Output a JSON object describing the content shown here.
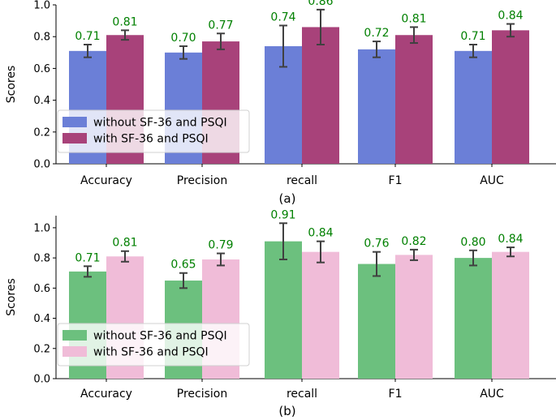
{
  "chart_data": [
    {
      "type": "bar",
      "panel": "(a)",
      "caption": "(a)",
      "categories": [
        "Accuracy",
        "Precision",
        "recall",
        "F1",
        "AUC"
      ],
      "ylabel": "Scores",
      "ylim": [
        0,
        1.0
      ],
      "yticks": [
        "0.0",
        "0.2",
        "0.4",
        "0.6",
        "0.8",
        "1.0"
      ],
      "legend_position": "lower-left",
      "value_label_color": "#008000",
      "error_color": "#404040",
      "series": [
        {
          "name": "without SF-36 and PSQI",
          "color": "#6b7fd7",
          "values": [
            0.71,
            0.7,
            0.74,
            0.72,
            0.71
          ],
          "labels": [
            "0.71",
            "0.70",
            "0.74",
            "0.72",
            "0.71"
          ],
          "errors": [
            0.04,
            0.04,
            0.13,
            0.05,
            0.04
          ]
        },
        {
          "name": "with SF-36 and PSQI",
          "color": "#a8427a",
          "values": [
            0.81,
            0.77,
            0.86,
            0.81,
            0.84
          ],
          "labels": [
            "0.81",
            "0.77",
            "0.86",
            "0.81",
            "0.84"
          ],
          "errors": [
            0.03,
            0.05,
            0.11,
            0.05,
            0.04
          ]
        }
      ]
    },
    {
      "type": "bar",
      "panel": "(b)",
      "caption": "(b)",
      "categories": [
        "Accuracy",
        "Precision",
        "recall",
        "F1",
        "AUC"
      ],
      "ylabel": "Scores",
      "ylim": [
        0,
        1.08
      ],
      "yticks": [
        "0.0",
        "0.2",
        "0.4",
        "0.6",
        "0.8",
        "1.0"
      ],
      "legend_position": "lower-left",
      "value_label_color": "#008000",
      "error_color": "#404040",
      "series": [
        {
          "name": "without SF-36 and PSQI",
          "color": "#6cc07e",
          "values": [
            0.71,
            0.65,
            0.91,
            0.76,
            0.8
          ],
          "labels": [
            "0.71",
            "0.65",
            "0.91",
            "0.76",
            "0.80"
          ],
          "errors": [
            0.035,
            0.05,
            0.12,
            0.08,
            0.05
          ]
        },
        {
          "name": "with SF-36 and PSQI",
          "color": "#f0bcd8",
          "values": [
            0.81,
            0.79,
            0.84,
            0.82,
            0.84
          ],
          "labels": [
            "0.81",
            "0.79",
            "0.84",
            "0.82",
            "0.84"
          ],
          "errors": [
            0.035,
            0.04,
            0.07,
            0.035,
            0.03
          ]
        }
      ]
    }
  ]
}
